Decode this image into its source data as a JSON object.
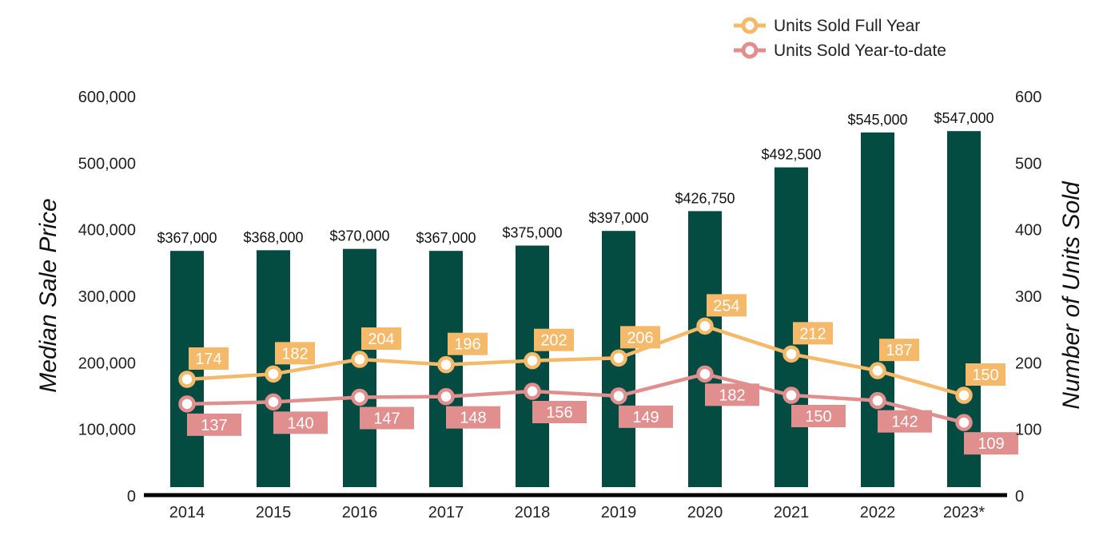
{
  "chart_data": {
    "type": "bar+line",
    "categories": [
      "2014",
      "2015",
      "2016",
      "2017",
      "2018",
      "2019",
      "2020",
      "2021",
      "2022",
      "2023*"
    ],
    "bar_series": {
      "name": "Median Sale Price",
      "values": [
        367000,
        368000,
        370000,
        367000,
        375000,
        397000,
        426750,
        492500,
        545000,
        547000
      ],
      "labels": [
        "$367,000",
        "$368,000",
        "$370,000",
        "$367,000",
        "$375,000",
        "$397,000",
        "$426,750",
        "$492,500",
        "$545,000",
        "$547,000"
      ],
      "color": "#044c42"
    },
    "line_series": [
      {
        "name": "Units Sold Full Year",
        "values": [
          174,
          182,
          204,
          196,
          202,
          206,
          254,
          212,
          187,
          150
        ],
        "color": "#f5b96a",
        "label_position": "above"
      },
      {
        "name": "Units Sold Year-to-date",
        "values": [
          137,
          140,
          147,
          148,
          156,
          149,
          182,
          150,
          142,
          109
        ],
        "color": "#e08e8e",
        "label_position": "below"
      }
    ],
    "y_left": {
      "label": "Median Sale Price",
      "range": [
        0,
        600000
      ],
      "ticks": [
        0,
        100000,
        200000,
        300000,
        400000,
        500000,
        600000
      ],
      "tick_labels": [
        "0",
        "100,000",
        "200,000",
        "300,000",
        "400,000",
        "500,000",
        "600,000"
      ]
    },
    "y_right": {
      "label": "Number of Units Sold",
      "range": [
        0,
        600
      ],
      "ticks": [
        0,
        100,
        200,
        300,
        400,
        500,
        600
      ],
      "tick_labels": [
        "0",
        "100",
        "200",
        "300",
        "400",
        "500",
        "600"
      ]
    },
    "legend": {
      "position": "top-right",
      "items": [
        "Units Sold Full Year",
        "Units Sold Year-to-date"
      ]
    },
    "grid": false
  }
}
